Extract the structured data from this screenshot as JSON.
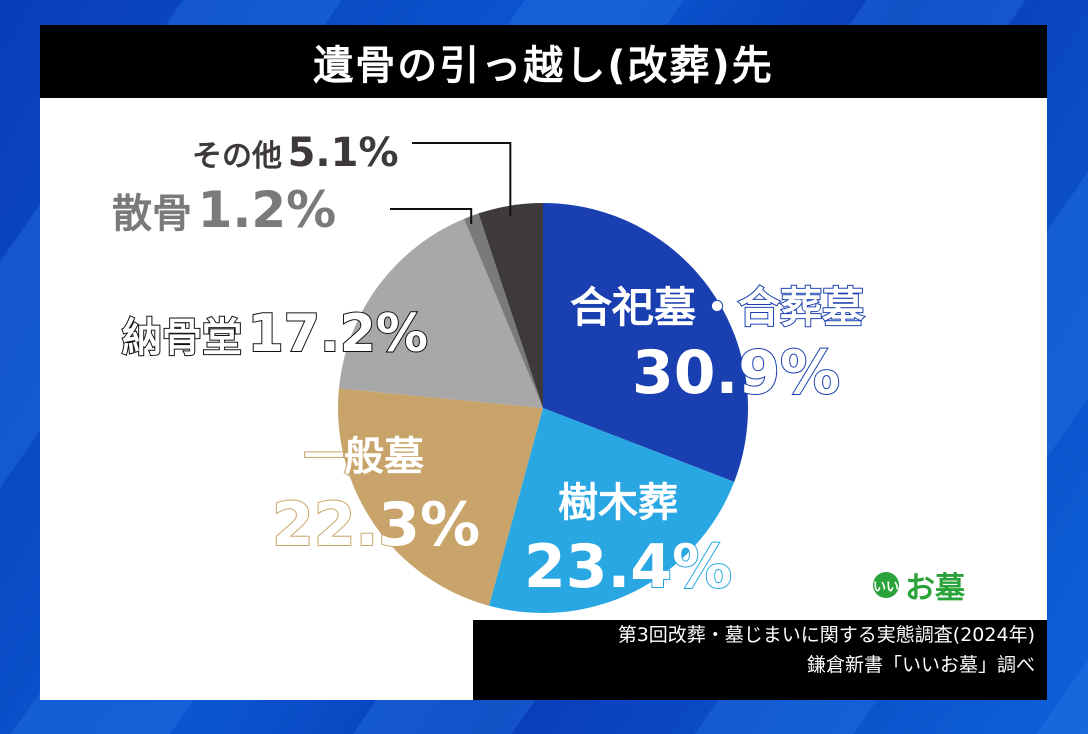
{
  "title": "遺骨の引っ越し(改葬)先",
  "chart_data": {
    "type": "pie",
    "title": "遺骨の引っ越し(改葬)先",
    "start": "12 o'clock, clockwise",
    "slices": [
      {
        "label": "合祀墓・合葬墓",
        "value": 30.9,
        "display": "30.9%",
        "color": "#1a3fb0"
      },
      {
        "label": "樹木葬",
        "value": 23.4,
        "display": "23.4%",
        "color": "#29a7e3"
      },
      {
        "label": "一般墓",
        "value": 22.3,
        "display": "22.3%",
        "color": "#c9a46a"
      },
      {
        "label": "納骨堂",
        "value": 17.2,
        "display": "17.2%",
        "color": "#a8a8a8"
      },
      {
        "label": "散骨",
        "value": 1.2,
        "display": "1.2%",
        "color": "#7a7a7a"
      },
      {
        "label": "その他",
        "value": 5.1,
        "display": "5.1%",
        "color": "#3e3a39"
      }
    ],
    "source": [
      "第3回改葬・墓じまいに関する実態調査(2024年)",
      "鎌倉新書「いいお墓」調べ"
    ]
  },
  "labels": {
    "gosshi": {
      "name": "合祀墓・合葬墓",
      "pct": "30.9%"
    },
    "jumoku": {
      "name": "樹木葬",
      "pct": "23.4%"
    },
    "ippan": {
      "name": "一般墓",
      "pct": "22.3%"
    },
    "noukotsu": {
      "name": "納骨堂",
      "pct": "17.2%"
    },
    "sankotsu": {
      "name": "散骨",
      "pct": "1.2%"
    },
    "sonota": {
      "name": "その他",
      "pct": "5.1%"
    }
  },
  "source": {
    "line1": "第3回改葬・墓じまいに関する実態調査(2024年)",
    "line2": "鎌倉新書「いいお墓」調べ"
  },
  "logo": {
    "mark": "いい",
    "text": "お墓",
    "color": "#2aa33a"
  }
}
